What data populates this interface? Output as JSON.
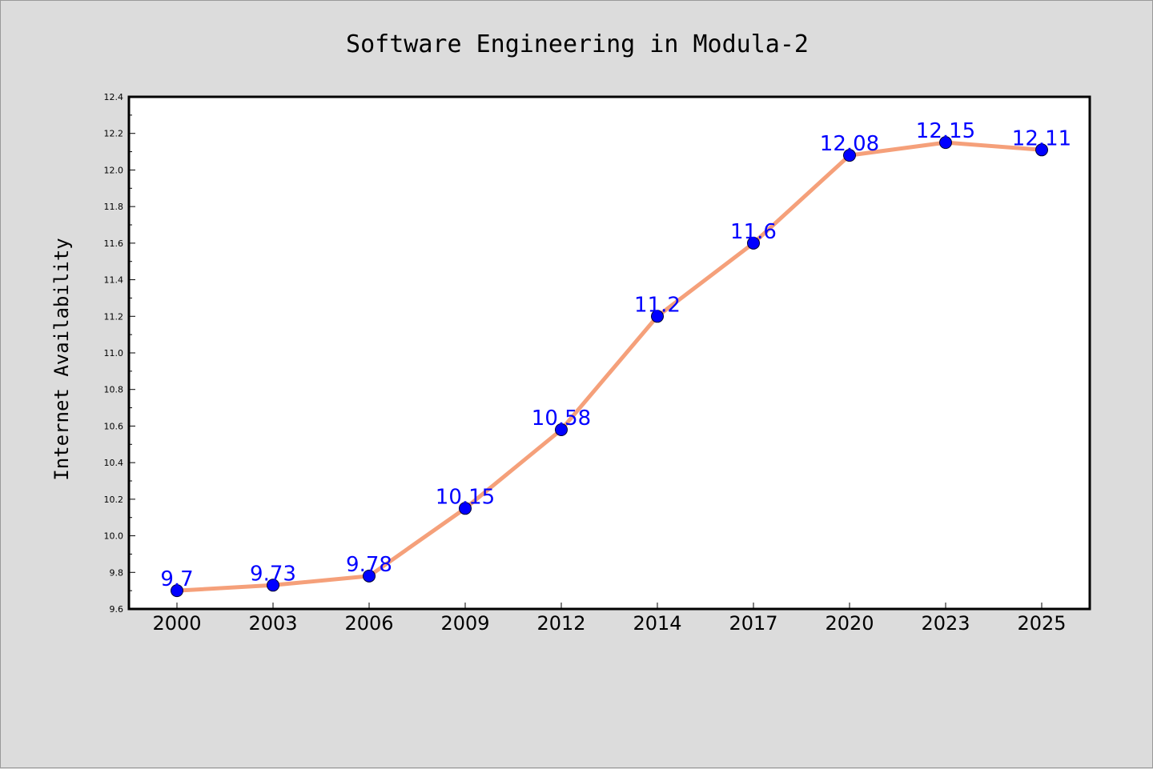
{
  "chart_data": {
    "type": "line",
    "title": "Software Engineering in Modula-2",
    "xlabel": "",
    "ylabel": "Internet Availability",
    "categories": [
      "2000",
      "2003",
      "2006",
      "2009",
      "2012",
      "2014",
      "2017",
      "2020",
      "2023",
      "2025"
    ],
    "series": [
      {
        "values": [
          9.7,
          9.73,
          9.78,
          10.15,
          10.58,
          11.2,
          11.6,
          12.08,
          12.15,
          12.11
        ],
        "labels": [
          "9.7",
          "9.73",
          "9.78",
          "10.15",
          "10.58",
          "11.2",
          "11.6",
          "12.08",
          "12.15",
          "12.11"
        ]
      }
    ],
    "ylim": [
      9.6,
      12.4
    ],
    "yticks": [
      "9.6",
      "9.8",
      "10.0",
      "10.2",
      "10.4",
      "10.6",
      "10.8",
      "11.0",
      "11.2",
      "11.4",
      "11.6",
      "11.8",
      "12.0",
      "12.2",
      "12.4"
    ],
    "grid": false,
    "legend": "none",
    "colors": {
      "line": "#f5a07a",
      "marker": "#0000ff",
      "data_label": "#0000ff",
      "background": "#dcdcdc",
      "plot_area": "#ffffff"
    }
  }
}
